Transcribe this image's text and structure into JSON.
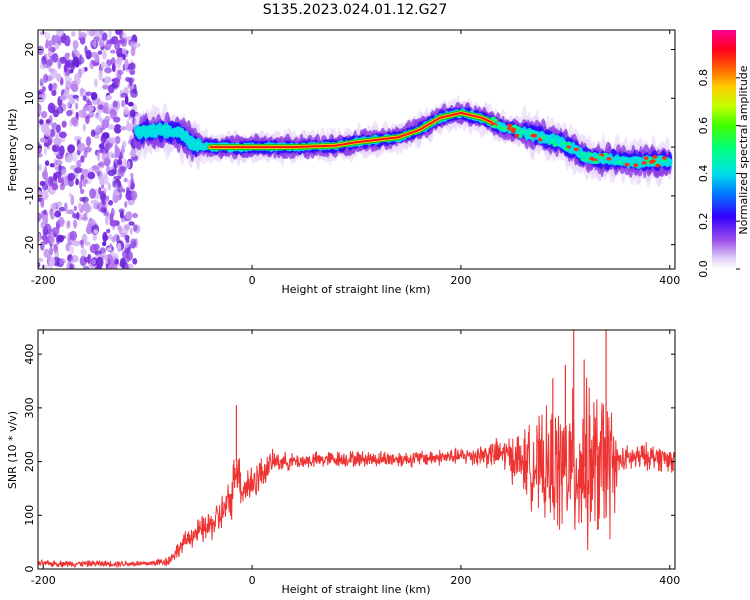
{
  "title": "S135.2023.024.01.12.G27",
  "chart_data": [
    {
      "type": "heatmap",
      "xlabel": "Height of straight line (km)",
      "ylabel": "Frequency (Hz)",
      "xlim": [
        -205,
        405
      ],
      "ylim": [
        -25,
        24
      ],
      "xticks": [
        -200,
        0,
        200,
        400
      ],
      "yticks": [
        -20,
        -10,
        0,
        10,
        20
      ],
      "colorbar": {
        "label": "Normalized spectral amplitude",
        "range": [
          0,
          1
        ],
        "ticks": [
          "0.0",
          "0.2",
          "0.4",
          "0.6",
          "0.8"
        ]
      },
      "ridge": {
        "x": [
          -110,
          -90,
          -70,
          -55,
          -40,
          -20,
          0,
          40,
          80,
          100,
          120,
          140,
          160,
          180,
          200,
          220,
          240,
          260,
          280,
          300,
          320,
          340,
          360,
          380,
          400
        ],
        "y": [
          3,
          3.5,
          3,
          0.5,
          0,
          0,
          0,
          0,
          0.3,
          1,
          1.5,
          2,
          3.5,
          6,
          7,
          6,
          4,
          3,
          2,
          0.5,
          -2,
          -2.5,
          -3,
          -3,
          -3
        ]
      },
      "noise_region_x": [
        -205,
        -110
      ]
    },
    {
      "type": "line",
      "xlabel": "Height of straight line (km)",
      "ylabel": "SNR (10 * v/v)",
      "xlim": [
        -205,
        405
      ],
      "ylim": [
        0,
        445
      ],
      "xticks": [
        -200,
        0,
        200,
        400
      ],
      "yticks": [
        0,
        100,
        200,
        300,
        400
      ],
      "color": "#ee3333",
      "envelope": {
        "x": [
          -205,
          -100,
          -80,
          -60,
          -40,
          -30,
          -20,
          -15,
          -10,
          0,
          10,
          20,
          40,
          80,
          150,
          200,
          240,
          260,
          280,
          300,
          320,
          345,
          350,
          360,
          380,
          400,
          405
        ],
        "mean": [
          10,
          10,
          15,
          60,
          80,
          100,
          130,
          200,
          150,
          160,
          180,
          200,
          200,
          205,
          205,
          210,
          215,
          200,
          185,
          190,
          190,
          190,
          200,
          205,
          210,
          205,
          200
        ],
        "spread": [
          6,
          6,
          10,
          20,
          30,
          35,
          40,
          50,
          40,
          40,
          30,
          20,
          15,
          15,
          15,
          15,
          30,
          60,
          100,
          130,
          150,
          130,
          25,
          25,
          25,
          25,
          20
        ]
      },
      "spikes": [
        {
          "x": -15,
          "y": 305
        },
        {
          "x": 300,
          "y": 380
        },
        {
          "x": 308,
          "y": 445
        },
        {
          "x": 318,
          "y": 390
        },
        {
          "x": 339,
          "y": 445
        },
        {
          "x": 288,
          "y": 355
        }
      ]
    }
  ]
}
